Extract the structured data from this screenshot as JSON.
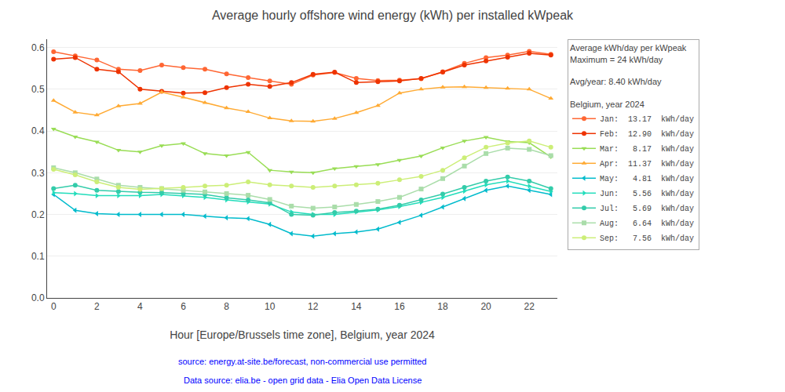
{
  "chart_data": {
    "type": "line",
    "title": "Average hourly offshore wind energy (kWh) per installed kWpeak",
    "xlabel": "Hour [Europe/Brussels time zone], Belgium, year 2024",
    "annotations": [
      "source: energy.at-site.be/forecast, non-commercial use permitted",
      "Data source: elia.be - open grid data - Elia Open Data License"
    ],
    "legend_title": "Average kWh/day per kWpeak\nMaximum = 24 kWh/day\n\nAvg/year: 8.40 kWh/day\n\nBelgium, year 2024",
    "legend": "right",
    "grid": true,
    "x": [
      0,
      1,
      2,
      3,
      4,
      5,
      6,
      7,
      8,
      9,
      10,
      11,
      12,
      13,
      14,
      15,
      16,
      17,
      18,
      19,
      20,
      21,
      22,
      23
    ],
    "xlim": [
      -0.3,
      23.3
    ],
    "xticks": [
      0,
      2,
      4,
      6,
      8,
      10,
      12,
      14,
      16,
      18,
      20,
      22
    ],
    "ylim": [
      0.0,
      0.62
    ],
    "yticks": [
      {
        "value": 0.0,
        "label": "0.0"
      },
      0.1,
      0.2,
      0.3,
      0.4,
      0.5,
      0.6
    ],
    "series": [
      {
        "name": "Jan:  13.17  kWh/day",
        "color": "#FF6633",
        "marker": "circle",
        "values": [
          0.59,
          0.58,
          0.57,
          0.548,
          0.545,
          0.558,
          0.552,
          0.548,
          0.537,
          0.528,
          0.52,
          0.512,
          0.534,
          0.54,
          0.526,
          0.521,
          0.522,
          0.525,
          0.542,
          0.562,
          0.576,
          0.582,
          0.591,
          0.584
        ]
      },
      {
        "name": "Feb:  12.90  kWh/day",
        "color": "#EE3300",
        "marker": "circle",
        "values": [
          0.572,
          0.576,
          0.548,
          0.542,
          0.5,
          0.495,
          0.491,
          0.492,
          0.504,
          0.512,
          0.507,
          0.516,
          0.536,
          0.541,
          0.516,
          0.518,
          0.52,
          0.526,
          0.541,
          0.558,
          0.568,
          0.577,
          0.586,
          0.582
        ]
      },
      {
        "name": "Mar:   8.17  kWh/day",
        "color": "#99DD55",
        "marker": "triangle-down",
        "values": [
          0.405,
          0.386,
          0.374,
          0.354,
          0.35,
          0.365,
          0.37,
          0.346,
          0.341,
          0.349,
          0.306,
          0.302,
          0.3,
          0.31,
          0.315,
          0.32,
          0.33,
          0.34,
          0.36,
          0.376,
          0.385,
          0.375,
          0.372,
          0.338
        ]
      },
      {
        "name": "Apr:  11.37  kWh/day",
        "color": "#FFAA33",
        "marker": "triangle-up",
        "values": [
          0.473,
          0.445,
          0.438,
          0.46,
          0.466,
          0.493,
          0.481,
          0.468,
          0.455,
          0.446,
          0.431,
          0.424,
          0.423,
          0.43,
          0.444,
          0.461,
          0.491,
          0.5,
          0.505,
          0.506,
          0.504,
          0.502,
          0.5,
          0.478
        ]
      },
      {
        "name": "May:   4.81  kWh/day",
        "color": "#00BBCC",
        "marker": "triangle-left",
        "values": [
          0.248,
          0.21,
          0.202,
          0.2,
          0.2,
          0.2,
          0.2,
          0.196,
          0.192,
          0.19,
          0.176,
          0.154,
          0.148,
          0.154,
          0.158,
          0.165,
          0.181,
          0.198,
          0.218,
          0.238,
          0.258,
          0.268,
          0.258,
          0.248
        ]
      },
      {
        "name": "Jun:   5.56  kWh/day",
        "color": "#22DDBB",
        "marker": "triangle-right",
        "values": [
          0.252,
          0.25,
          0.245,
          0.245,
          0.245,
          0.248,
          0.245,
          0.241,
          0.235,
          0.23,
          0.225,
          0.206,
          0.2,
          0.2,
          0.206,
          0.211,
          0.219,
          0.229,
          0.241,
          0.256,
          0.271,
          0.28,
          0.268,
          0.255
        ]
      },
      {
        "name": "Jul:   5.69  kWh/day",
        "color": "#33CCAA",
        "marker": "circle",
        "values": [
          0.262,
          0.27,
          0.258,
          0.255,
          0.253,
          0.252,
          0.25,
          0.248,
          0.24,
          0.235,
          0.228,
          0.2,
          0.198,
          0.205,
          0.208,
          0.213,
          0.222,
          0.235,
          0.249,
          0.265,
          0.28,
          0.29,
          0.28,
          0.262
        ]
      },
      {
        "name": "Aug:   6.64  kWh/day",
        "color": "#AADDAA",
        "marker": "square",
        "values": [
          0.312,
          0.3,
          0.285,
          0.27,
          0.265,
          0.262,
          0.258,
          0.254,
          0.25,
          0.246,
          0.236,
          0.22,
          0.215,
          0.218,
          0.224,
          0.231,
          0.241,
          0.261,
          0.286,
          0.316,
          0.346,
          0.359,
          0.356,
          0.341
        ]
      },
      {
        "name": "Sep:   7.56  kWh/day",
        "color": "#CCEE77",
        "marker": "circle",
        "values": [
          0.308,
          0.295,
          0.278,
          0.265,
          0.26,
          0.262,
          0.265,
          0.268,
          0.27,
          0.278,
          0.271,
          0.268,
          0.265,
          0.268,
          0.271,
          0.275,
          0.283,
          0.291,
          0.306,
          0.336,
          0.361,
          0.371,
          0.376,
          0.361
        ]
      }
    ]
  }
}
